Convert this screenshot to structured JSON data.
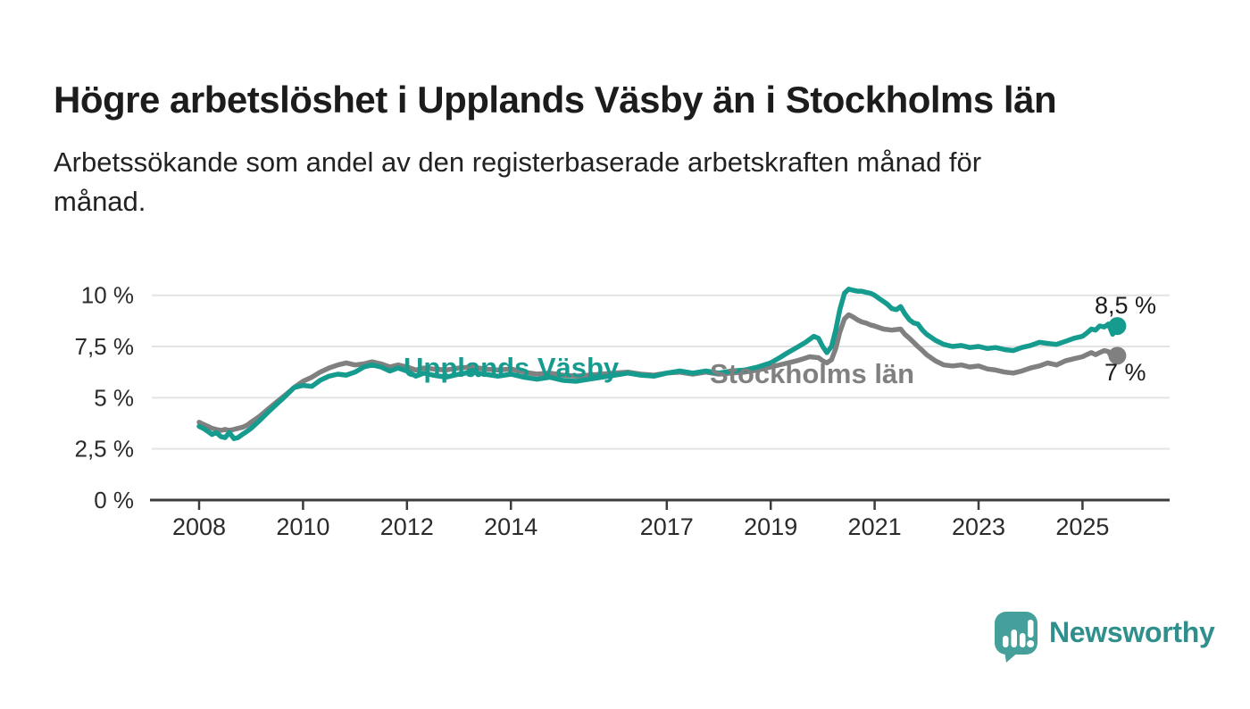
{
  "title": "Högre arbetslöshet i Upplands Väsby än i Stockholms län",
  "subtitle_lines": [
    "Arbetssökande som andel av den registerbaserade arbetskraften månad för",
    "månad."
  ],
  "brand": {
    "name": "Newsworthy",
    "logo_icon": "speech-bubble-bar-chart",
    "bubble_color": "#45a09b",
    "text_color": "#2e8f8c"
  },
  "colors": {
    "upplands_vasby": "#169b8f",
    "stockholms_lan": "#808080",
    "axis": "#3c3c3c",
    "grid": "#e3e3e3",
    "tick_text": "#2b2b2b"
  },
  "chart_data": {
    "type": "line",
    "title": "Högre arbetslöshet i Upplands Väsby än i Stockholms län",
    "xlabel": "",
    "ylabel": "Arbetssökande som andel av den registerbaserade arbetskraften",
    "unit": "%",
    "grid": true,
    "legend_position": "inline-labels",
    "xlim": [
      2007.1,
      2026.7
    ],
    "ylim": [
      0,
      10
    ],
    "yticks": [
      {
        "value": 0,
        "label": "0 %"
      },
      {
        "value": 2.5,
        "label": "2,5 %"
      },
      {
        "value": 5,
        "label": "5 %"
      },
      {
        "value": 7.5,
        "label": "7,5 %"
      },
      {
        "value": 10,
        "label": "10 %"
      }
    ],
    "xticks": [
      {
        "value": 2008,
        "label": "2008"
      },
      {
        "value": 2010,
        "label": "2010"
      },
      {
        "value": 2012,
        "label": "2012"
      },
      {
        "value": 2014,
        "label": "2014"
      },
      {
        "value": 2017,
        "label": "2017"
      },
      {
        "value": 2019,
        "label": "2019"
      },
      {
        "value": 2021,
        "label": "2021"
      },
      {
        "value": 2023,
        "label": "2023"
      },
      {
        "value": 2025,
        "label": "2025"
      }
    ],
    "series": [
      {
        "name": "Upplands Väsby",
        "color": "#169b8f",
        "end_label": "8,5 %",
        "end_value": 8.5,
        "points": [
          [
            2008.0,
            3.6
          ],
          [
            2008.08,
            3.5
          ],
          [
            2008.17,
            3.35
          ],
          [
            2008.25,
            3.2
          ],
          [
            2008.33,
            3.3
          ],
          [
            2008.42,
            3.1
          ],
          [
            2008.5,
            3.05
          ],
          [
            2008.58,
            3.3
          ],
          [
            2008.67,
            3.0
          ],
          [
            2008.75,
            3.05
          ],
          [
            2008.83,
            3.2
          ],
          [
            2008.92,
            3.35
          ],
          [
            2009.0,
            3.5
          ],
          [
            2009.17,
            3.9
          ],
          [
            2009.33,
            4.3
          ],
          [
            2009.5,
            4.7
          ],
          [
            2009.67,
            5.1
          ],
          [
            2009.83,
            5.5
          ],
          [
            2010.0,
            5.6
          ],
          [
            2010.17,
            5.55
          ],
          [
            2010.33,
            5.85
          ],
          [
            2010.5,
            6.05
          ],
          [
            2010.67,
            6.15
          ],
          [
            2010.83,
            6.1
          ],
          [
            2011.0,
            6.25
          ],
          [
            2011.17,
            6.5
          ],
          [
            2011.33,
            6.6
          ],
          [
            2011.5,
            6.5
          ],
          [
            2011.67,
            6.3
          ],
          [
            2011.83,
            6.45
          ],
          [
            2012.0,
            6.3
          ],
          [
            2012.17,
            6.05
          ],
          [
            2012.33,
            6.2
          ],
          [
            2012.5,
            6.1
          ],
          [
            2012.75,
            6.0
          ],
          [
            2013.0,
            6.15
          ],
          [
            2013.25,
            6.25
          ],
          [
            2013.5,
            6.15
          ],
          [
            2013.75,
            6.05
          ],
          [
            2014.0,
            6.15
          ],
          [
            2014.25,
            6.0
          ],
          [
            2014.5,
            5.9
          ],
          [
            2014.75,
            6.0
          ],
          [
            2015.0,
            5.85
          ],
          [
            2015.25,
            5.8
          ],
          [
            2015.5,
            5.9
          ],
          [
            2015.75,
            6.0
          ],
          [
            2016.0,
            6.1
          ],
          [
            2016.25,
            6.2
          ],
          [
            2016.5,
            6.1
          ],
          [
            2016.75,
            6.05
          ],
          [
            2017.0,
            6.2
          ],
          [
            2017.25,
            6.3
          ],
          [
            2017.5,
            6.2
          ],
          [
            2017.75,
            6.3
          ],
          [
            2018.0,
            6.2
          ],
          [
            2018.25,
            6.3
          ],
          [
            2018.5,
            6.35
          ],
          [
            2018.75,
            6.5
          ],
          [
            2019.0,
            6.7
          ],
          [
            2019.17,
            6.95
          ],
          [
            2019.33,
            7.2
          ],
          [
            2019.5,
            7.45
          ],
          [
            2019.67,
            7.7
          ],
          [
            2019.83,
            8.0
          ],
          [
            2019.92,
            7.9
          ],
          [
            2020.0,
            7.5
          ],
          [
            2020.08,
            7.2
          ],
          [
            2020.17,
            7.5
          ],
          [
            2020.25,
            8.3
          ],
          [
            2020.33,
            9.3
          ],
          [
            2020.42,
            10.1
          ],
          [
            2020.5,
            10.3
          ],
          [
            2020.58,
            10.25
          ],
          [
            2020.67,
            10.2
          ],
          [
            2020.75,
            10.2
          ],
          [
            2020.83,
            10.15
          ],
          [
            2020.92,
            10.1
          ],
          [
            2021.0,
            10.0
          ],
          [
            2021.08,
            9.85
          ],
          [
            2021.17,
            9.7
          ],
          [
            2021.25,
            9.55
          ],
          [
            2021.33,
            9.35
          ],
          [
            2021.42,
            9.3
          ],
          [
            2021.5,
            9.45
          ],
          [
            2021.58,
            9.1
          ],
          [
            2021.67,
            8.8
          ],
          [
            2021.75,
            8.65
          ],
          [
            2021.83,
            8.6
          ],
          [
            2021.92,
            8.3
          ],
          [
            2022.0,
            8.1
          ],
          [
            2022.17,
            7.8
          ],
          [
            2022.33,
            7.6
          ],
          [
            2022.5,
            7.5
          ],
          [
            2022.67,
            7.55
          ],
          [
            2022.83,
            7.45
          ],
          [
            2023.0,
            7.5
          ],
          [
            2023.17,
            7.4
          ],
          [
            2023.33,
            7.45
          ],
          [
            2023.5,
            7.35
          ],
          [
            2023.67,
            7.3
          ],
          [
            2023.83,
            7.45
          ],
          [
            2024.0,
            7.55
          ],
          [
            2024.17,
            7.7
          ],
          [
            2024.33,
            7.65
          ],
          [
            2024.5,
            7.6
          ],
          [
            2024.67,
            7.75
          ],
          [
            2024.83,
            7.9
          ],
          [
            2025.0,
            8.0
          ],
          [
            2025.08,
            8.15
          ],
          [
            2025.17,
            8.35
          ],
          [
            2025.25,
            8.3
          ],
          [
            2025.33,
            8.5
          ],
          [
            2025.42,
            8.45
          ],
          [
            2025.5,
            8.6
          ],
          [
            2025.58,
            8.1
          ],
          [
            2025.67,
            8.5
          ]
        ]
      },
      {
        "name": "Stockholms län",
        "color": "#808080",
        "end_label": "7 %",
        "end_value": 7.0,
        "points": [
          [
            2008.0,
            3.8
          ],
          [
            2008.08,
            3.7
          ],
          [
            2008.17,
            3.6
          ],
          [
            2008.25,
            3.5
          ],
          [
            2008.33,
            3.45
          ],
          [
            2008.42,
            3.4
          ],
          [
            2008.5,
            3.45
          ],
          [
            2008.58,
            3.4
          ],
          [
            2008.67,
            3.45
          ],
          [
            2008.75,
            3.5
          ],
          [
            2008.83,
            3.55
          ],
          [
            2008.92,
            3.65
          ],
          [
            2009.0,
            3.8
          ],
          [
            2009.17,
            4.1
          ],
          [
            2009.33,
            4.45
          ],
          [
            2009.5,
            4.8
          ],
          [
            2009.67,
            5.15
          ],
          [
            2009.83,
            5.5
          ],
          [
            2010.0,
            5.8
          ],
          [
            2010.17,
            6.0
          ],
          [
            2010.33,
            6.25
          ],
          [
            2010.5,
            6.45
          ],
          [
            2010.67,
            6.6
          ],
          [
            2010.83,
            6.7
          ],
          [
            2011.0,
            6.6
          ],
          [
            2011.17,
            6.65
          ],
          [
            2011.33,
            6.75
          ],
          [
            2011.5,
            6.65
          ],
          [
            2011.67,
            6.5
          ],
          [
            2011.83,
            6.6
          ],
          [
            2012.0,
            6.5
          ],
          [
            2012.17,
            6.35
          ],
          [
            2012.33,
            6.45
          ],
          [
            2012.5,
            6.4
          ],
          [
            2012.75,
            6.35
          ],
          [
            2013.0,
            6.45
          ],
          [
            2013.25,
            6.5
          ],
          [
            2013.5,
            6.4
          ],
          [
            2013.75,
            6.35
          ],
          [
            2014.0,
            6.4
          ],
          [
            2014.25,
            6.25
          ],
          [
            2014.5,
            6.15
          ],
          [
            2014.75,
            6.2
          ],
          [
            2015.0,
            6.1
          ],
          [
            2015.25,
            6.05
          ],
          [
            2015.5,
            6.1
          ],
          [
            2015.75,
            6.15
          ],
          [
            2016.0,
            6.2
          ],
          [
            2016.25,
            6.25
          ],
          [
            2016.5,
            6.15
          ],
          [
            2016.75,
            6.1
          ],
          [
            2017.0,
            6.2
          ],
          [
            2017.25,
            6.25
          ],
          [
            2017.5,
            6.15
          ],
          [
            2017.75,
            6.25
          ],
          [
            2018.0,
            6.15
          ],
          [
            2018.25,
            6.2
          ],
          [
            2018.5,
            6.25
          ],
          [
            2018.75,
            6.35
          ],
          [
            2019.0,
            6.5
          ],
          [
            2019.25,
            6.65
          ],
          [
            2019.5,
            6.8
          ],
          [
            2019.75,
            7.0
          ],
          [
            2019.92,
            6.95
          ],
          [
            2020.0,
            6.8
          ],
          [
            2020.08,
            6.7
          ],
          [
            2020.17,
            6.85
          ],
          [
            2020.25,
            7.4
          ],
          [
            2020.33,
            8.2
          ],
          [
            2020.42,
            8.85
          ],
          [
            2020.5,
            9.05
          ],
          [
            2020.58,
            8.95
          ],
          [
            2020.67,
            8.8
          ],
          [
            2020.75,
            8.7
          ],
          [
            2020.83,
            8.65
          ],
          [
            2020.92,
            8.55
          ],
          [
            2021.0,
            8.5
          ],
          [
            2021.17,
            8.35
          ],
          [
            2021.33,
            8.3
          ],
          [
            2021.5,
            8.35
          ],
          [
            2021.58,
            8.1
          ],
          [
            2021.67,
            7.9
          ],
          [
            2021.75,
            7.7
          ],
          [
            2021.83,
            7.5
          ],
          [
            2021.92,
            7.3
          ],
          [
            2022.0,
            7.1
          ],
          [
            2022.17,
            6.8
          ],
          [
            2022.33,
            6.6
          ],
          [
            2022.5,
            6.55
          ],
          [
            2022.67,
            6.6
          ],
          [
            2022.83,
            6.5
          ],
          [
            2023.0,
            6.55
          ],
          [
            2023.17,
            6.4
          ],
          [
            2023.33,
            6.35
          ],
          [
            2023.5,
            6.25
          ],
          [
            2023.67,
            6.2
          ],
          [
            2023.83,
            6.3
          ],
          [
            2024.0,
            6.45
          ],
          [
            2024.17,
            6.55
          ],
          [
            2024.33,
            6.7
          ],
          [
            2024.5,
            6.6
          ],
          [
            2024.67,
            6.8
          ],
          [
            2024.83,
            6.9
          ],
          [
            2025.0,
            7.0
          ],
          [
            2025.08,
            7.1
          ],
          [
            2025.17,
            7.2
          ],
          [
            2025.25,
            7.1
          ],
          [
            2025.33,
            7.2
          ],
          [
            2025.42,
            7.3
          ],
          [
            2025.5,
            7.25
          ],
          [
            2025.58,
            6.9
          ],
          [
            2025.67,
            7.05
          ]
        ]
      }
    ]
  }
}
